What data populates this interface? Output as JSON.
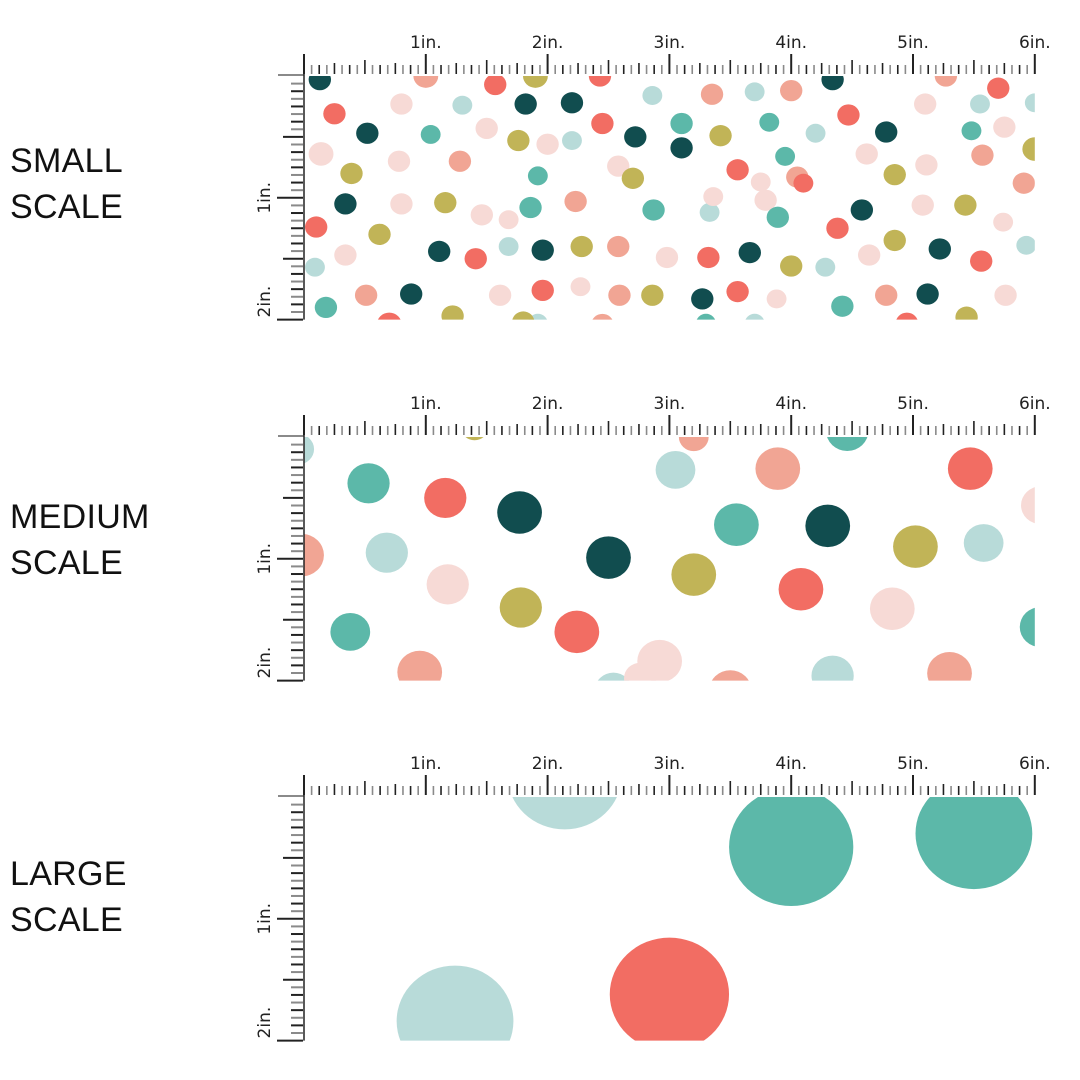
{
  "colors": {
    "dark": "#114d4f",
    "teal": "#5cb8a9",
    "coral": "#f26d63",
    "salmon": "#f1a594",
    "blush": "#f7dad6",
    "mint": "#b8dbd9",
    "olive": "#c1b457"
  },
  "ruler": {
    "h_labels": [
      "1in.",
      "2in.",
      "3in.",
      "4in.",
      "5in.",
      "6in."
    ],
    "v_labels": [
      "1in.",
      "2in."
    ],
    "tick_color": "#222222",
    "minor_color": "#8a8a8a",
    "inches_wide": 6,
    "inches_tall": 2,
    "subdivisions": 16
  },
  "sections": [
    {
      "label_line1": "SMALL",
      "label_line2": "SCALE",
      "dots": [
        [
          0.13,
          0.03,
          0.09,
          "dark"
        ],
        [
          1.0,
          0.0,
          0.1,
          "salmon"
        ],
        [
          1.57,
          0.07,
          0.09,
          "coral"
        ],
        [
          1.9,
          0.0,
          0.1,
          "olive"
        ],
        [
          2.43,
          0.0,
          0.09,
          "coral"
        ],
        [
          0.25,
          0.31,
          0.09,
          "coral"
        ],
        [
          0.8,
          0.23,
          0.09,
          "blush"
        ],
        [
          1.3,
          0.24,
          0.08,
          "mint"
        ],
        [
          1.82,
          0.23,
          0.09,
          "dark"
        ],
        [
          2.2,
          0.22,
          0.09,
          "dark"
        ],
        [
          2.86,
          0.16,
          0.08,
          "mint"
        ],
        [
          3.35,
          0.15,
          0.09,
          "salmon"
        ],
        [
          3.7,
          0.13,
          0.08,
          "mint"
        ],
        [
          4.0,
          0.12,
          0.09,
          "salmon"
        ],
        [
          4.34,
          0.03,
          0.09,
          "dark"
        ],
        [
          5.1,
          0.23,
          0.09,
          "blush"
        ],
        [
          5.55,
          0.23,
          0.08,
          "mint"
        ],
        [
          5.7,
          0.1,
          0.09,
          "coral"
        ],
        [
          6.0,
          0.22,
          0.08,
          "mint"
        ],
        [
          5.27,
          0.0,
          0.09,
          "salmon"
        ],
        [
          0.52,
          0.47,
          0.09,
          "dark"
        ],
        [
          1.04,
          0.48,
          0.08,
          "teal"
        ],
        [
          1.5,
          0.43,
          0.09,
          "blush"
        ],
        [
          2.0,
          0.56,
          0.09,
          "blush"
        ],
        [
          2.45,
          0.39,
          0.09,
          "coral"
        ],
        [
          2.72,
          0.5,
          0.09,
          "dark"
        ],
        [
          3.1,
          0.39,
          0.09,
          "teal"
        ],
        [
          3.42,
          0.49,
          0.09,
          "olive"
        ],
        [
          3.82,
          0.38,
          0.08,
          "teal"
        ],
        [
          4.2,
          0.47,
          0.08,
          "mint"
        ],
        [
          4.47,
          0.32,
          0.09,
          "coral"
        ],
        [
          4.78,
          0.46,
          0.09,
          "dark"
        ],
        [
          5.48,
          0.45,
          0.08,
          "teal"
        ],
        [
          5.75,
          0.42,
          0.09,
          "blush"
        ],
        [
          6.0,
          0.6,
          0.1,
          "olive"
        ],
        [
          1.76,
          0.53,
          0.09,
          "olive"
        ],
        [
          2.2,
          0.53,
          0.08,
          "mint"
        ],
        [
          3.1,
          0.59,
          0.09,
          "dark"
        ],
        [
          3.95,
          0.66,
          0.08,
          "teal"
        ],
        [
          0.14,
          0.64,
          0.1,
          "blush"
        ],
        [
          0.39,
          0.8,
          0.09,
          "olive"
        ],
        [
          0.78,
          0.7,
          0.09,
          "blush"
        ],
        [
          1.28,
          0.7,
          0.09,
          "salmon"
        ],
        [
          1.92,
          0.82,
          0.08,
          "teal"
        ],
        [
          2.58,
          0.74,
          0.09,
          "blush"
        ],
        [
          2.7,
          0.84,
          0.09,
          "olive"
        ],
        [
          3.56,
          0.77,
          0.09,
          "coral"
        ],
        [
          3.75,
          0.87,
          0.08,
          "blush"
        ],
        [
          4.05,
          0.83,
          0.09,
          "salmon"
        ],
        [
          4.62,
          0.64,
          0.09,
          "blush"
        ],
        [
          4.85,
          0.81,
          0.09,
          "olive"
        ],
        [
          5.11,
          0.73,
          0.09,
          "blush"
        ],
        [
          5.57,
          0.65,
          0.09,
          "salmon"
        ],
        [
          5.91,
          0.88,
          0.09,
          "salmon"
        ],
        [
          0.34,
          1.05,
          0.09,
          "dark"
        ],
        [
          0.8,
          1.05,
          0.09,
          "blush"
        ],
        [
          1.16,
          1.04,
          0.09,
          "olive"
        ],
        [
          1.46,
          1.14,
          0.09,
          "blush"
        ],
        [
          1.86,
          1.08,
          0.09,
          "teal"
        ],
        [
          2.23,
          1.03,
          0.09,
          "salmon"
        ],
        [
          2.87,
          1.1,
          0.09,
          "teal"
        ],
        [
          3.33,
          1.12,
          0.08,
          "mint"
        ],
        [
          3.36,
          0.99,
          0.08,
          "blush"
        ],
        [
          3.79,
          1.02,
          0.09,
          "blush"
        ],
        [
          4.1,
          0.88,
          0.08,
          "coral"
        ],
        [
          4.58,
          1.1,
          0.09,
          "dark"
        ],
        [
          5.08,
          1.06,
          0.09,
          "blush"
        ],
        [
          5.43,
          1.06,
          0.09,
          "olive"
        ],
        [
          5.74,
          1.2,
          0.08,
          "blush"
        ],
        [
          0.1,
          1.24,
          0.09,
          "coral"
        ],
        [
          0.62,
          1.3,
          0.09,
          "olive"
        ],
        [
          1.68,
          1.18,
          0.08,
          "blush"
        ],
        [
          3.89,
          1.16,
          0.09,
          "teal"
        ],
        [
          4.38,
          1.25,
          0.09,
          "coral"
        ],
        [
          4.85,
          1.35,
          0.09,
          "olive"
        ],
        [
          0.34,
          1.47,
          0.09,
          "blush"
        ],
        [
          1.11,
          1.44,
          0.09,
          "dark"
        ],
        [
          1.41,
          1.5,
          0.09,
          "coral"
        ],
        [
          1.68,
          1.4,
          0.08,
          "mint"
        ],
        [
          1.96,
          1.43,
          0.09,
          "dark"
        ],
        [
          2.28,
          1.4,
          0.09,
          "olive"
        ],
        [
          2.58,
          1.4,
          0.09,
          "salmon"
        ],
        [
          2.98,
          1.49,
          0.09,
          "blush"
        ],
        [
          3.32,
          1.49,
          0.09,
          "coral"
        ],
        [
          3.66,
          1.45,
          0.09,
          "dark"
        ],
        [
          4.0,
          1.56,
          0.09,
          "olive"
        ],
        [
          4.28,
          1.57,
          0.08,
          "mint"
        ],
        [
          4.64,
          1.47,
          0.09,
          "blush"
        ],
        [
          5.22,
          1.42,
          0.09,
          "dark"
        ],
        [
          5.56,
          1.52,
          0.09,
          "coral"
        ],
        [
          5.93,
          1.39,
          0.08,
          "mint"
        ],
        [
          0.09,
          1.57,
          0.08,
          "mint"
        ],
        [
          0.18,
          1.9,
          0.09,
          "teal"
        ],
        [
          0.51,
          1.8,
          0.09,
          "salmon"
        ],
        [
          0.88,
          1.79,
          0.09,
          "dark"
        ],
        [
          1.61,
          1.8,
          0.09,
          "blush"
        ],
        [
          1.96,
          1.76,
          0.09,
          "coral"
        ],
        [
          2.27,
          1.73,
          0.08,
          "blush"
        ],
        [
          2.59,
          1.8,
          0.09,
          "salmon"
        ],
        [
          2.86,
          1.8,
          0.09,
          "olive"
        ],
        [
          3.27,
          1.83,
          0.09,
          "dark"
        ],
        [
          3.56,
          1.77,
          0.09,
          "coral"
        ],
        [
          3.88,
          1.83,
          0.08,
          "blush"
        ],
        [
          4.42,
          1.89,
          0.09,
          "teal"
        ],
        [
          4.78,
          1.8,
          0.09,
          "salmon"
        ],
        [
          5.12,
          1.79,
          0.09,
          "dark"
        ],
        [
          5.76,
          1.8,
          0.09,
          "blush"
        ],
        [
          0.7,
          2.04,
          0.1,
          "coral"
        ],
        [
          1.22,
          1.97,
          0.09,
          "olive"
        ],
        [
          1.92,
          2.03,
          0.08,
          "mint"
        ],
        [
          1.8,
          2.02,
          0.09,
          "olive"
        ],
        [
          3.7,
          2.03,
          0.08,
          "mint"
        ],
        [
          4.95,
          2.03,
          0.09,
          "coral"
        ],
        [
          5.44,
          1.98,
          0.09,
          "olive"
        ],
        [
          2.45,
          2.04,
          0.09,
          "salmon"
        ],
        [
          3.3,
          2.03,
          0.08,
          "teal"
        ]
      ]
    },
    {
      "label_line1": "MEDIUM",
      "label_line2": "SCALE",
      "dots": [
        [
          -0.05,
          0.1,
          0.13,
          "mint"
        ],
        [
          0.53,
          0.38,
          0.17,
          "teal"
        ],
        [
          1.16,
          0.5,
          0.17,
          "coral"
        ],
        [
          1.77,
          0.62,
          0.18,
          "dark"
        ],
        [
          3.05,
          0.27,
          0.16,
          "mint"
        ],
        [
          3.2,
          0.0,
          0.12,
          "salmon"
        ],
        [
          3.89,
          0.26,
          0.18,
          "salmon"
        ],
        [
          4.46,
          -0.05,
          0.17,
          "teal"
        ],
        [
          5.47,
          0.26,
          0.18,
          "coral"
        ],
        [
          6.05,
          0.56,
          0.16,
          "blush"
        ],
        [
          3.55,
          0.72,
          0.18,
          "teal"
        ],
        [
          4.3,
          0.73,
          0.18,
          "dark"
        ],
        [
          5.02,
          0.9,
          0.18,
          "olive"
        ],
        [
          5.58,
          0.87,
          0.16,
          "mint"
        ],
        [
          -0.02,
          0.97,
          0.18,
          "salmon"
        ],
        [
          0.68,
          0.95,
          0.17,
          "mint"
        ],
        [
          1.18,
          1.21,
          0.17,
          "blush"
        ],
        [
          2.5,
          0.99,
          0.18,
          "dark"
        ],
        [
          3.2,
          1.13,
          0.18,
          "olive"
        ],
        [
          1.78,
          1.4,
          0.17,
          "olive"
        ],
        [
          2.24,
          1.6,
          0.18,
          "coral"
        ],
        [
          0.38,
          1.6,
          0.16,
          "teal"
        ],
        [
          2.92,
          1.84,
          0.18,
          "blush"
        ],
        [
          4.08,
          1.25,
          0.18,
          "coral"
        ],
        [
          4.83,
          1.41,
          0.18,
          "blush"
        ],
        [
          6.05,
          1.56,
          0.17,
          "teal"
        ],
        [
          0.95,
          1.93,
          0.18,
          "salmon"
        ],
        [
          3.5,
          2.08,
          0.17,
          "salmon"
        ],
        [
          4.34,
          1.96,
          0.17,
          "mint"
        ],
        [
          5.3,
          1.94,
          0.18,
          "salmon"
        ],
        [
          2.54,
          2.08,
          0.15,
          "mint"
        ],
        [
          2.76,
          1.98,
          0.13,
          "blush"
        ],
        [
          1.4,
          -0.08,
          0.11,
          "olive"
        ]
      ]
    },
    {
      "label_line1": "LARGE",
      "label_line2": "SCALE",
      "dots": [
        [
          2.14,
          -0.18,
          0.46,
          "mint"
        ],
        [
          4.0,
          0.41,
          0.5,
          "teal"
        ],
        [
          5.5,
          0.3,
          0.47,
          "teal"
        ],
        [
          1.24,
          1.84,
          0.47,
          "mint"
        ],
        [
          3.0,
          1.62,
          0.48,
          "coral"
        ]
      ]
    }
  ]
}
